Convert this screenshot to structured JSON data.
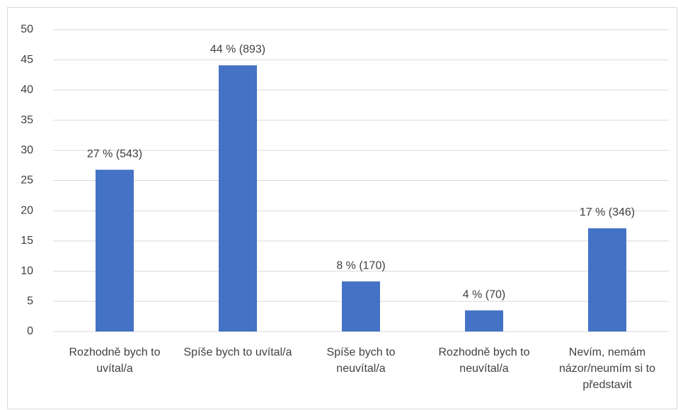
{
  "chart_data": {
    "type": "bar",
    "categories": [
      "Rozhodně bych to uvítal/a",
      "Spíše bych to uvítal/a",
      "Spíše bych to neuvítal/a",
      "Rozhodně bych to neuvítal/a",
      "Nevím, nemám názor/neumím si to představit"
    ],
    "values": [
      26.8,
      44.1,
      8.3,
      3.5,
      17.1
    ],
    "value_labels": [
      "27 % (543)",
      "44 % (893)",
      "8 % (170)",
      "4 % (70)",
      "17 % (346)"
    ],
    "color": "#4472c4",
    "ylim": [
      0,
      50
    ],
    "yticks": [
      0,
      5,
      10,
      15,
      20,
      25,
      30,
      35,
      40,
      45,
      50
    ],
    "grid": true
  }
}
